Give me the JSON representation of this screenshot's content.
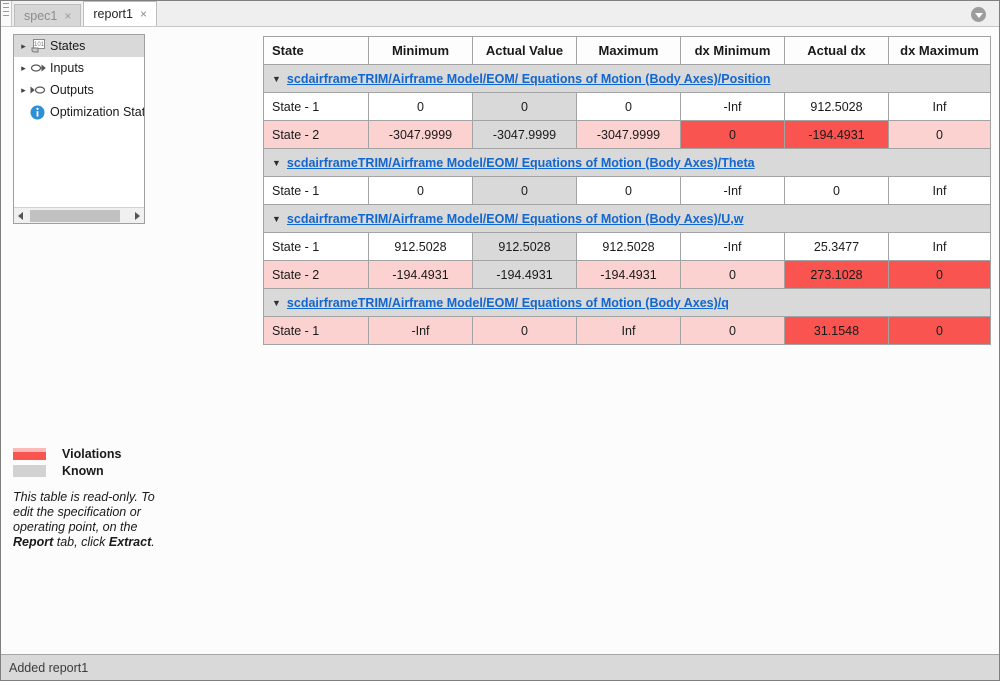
{
  "tabs": [
    {
      "label": "spec1",
      "active": false
    },
    {
      "label": "report1",
      "active": true
    }
  ],
  "close_glyph": "×",
  "tree": {
    "items": [
      {
        "label": "States",
        "icon": "states-icon",
        "caret": "▸",
        "selected": true
      },
      {
        "label": "Inputs",
        "icon": "inputs-icon",
        "caret": "▸",
        "selected": false
      },
      {
        "label": "Outputs",
        "icon": "outputs-icon",
        "caret": "▸",
        "selected": false
      },
      {
        "label": "Optimization Stat",
        "icon": "info-icon",
        "caret": "",
        "selected": false
      }
    ]
  },
  "table": {
    "columns": [
      "State",
      "Minimum",
      "Actual Value",
      "Maximum",
      "dx Minimum",
      "Actual dx",
      "dx Maximum"
    ],
    "groups": [
      {
        "title": "scdairframeTRIM/Airframe Model/EOM/ Equations of Motion (Body Axes)/Position",
        "rows": [
          {
            "state": "State - 1",
            "values": [
              "0",
              "0",
              "0",
              "-Inf",
              "912.5028",
              "Inf"
            ],
            "styles": [
              "normal",
              "normal",
              "actual",
              "normal",
              "normal",
              "normal",
              "normal"
            ]
          },
          {
            "state": "State - 2",
            "values": [
              "-3047.9999",
              "-3047.9999",
              "-3047.9999",
              "0",
              "-194.4931",
              "0"
            ],
            "styles": [
              "pink",
              "pink",
              "actual",
              "pink",
              "red",
              "red",
              "pink"
            ]
          }
        ]
      },
      {
        "title": "scdairframeTRIM/Airframe Model/EOM/ Equations of Motion (Body Axes)/Theta",
        "rows": [
          {
            "state": "State - 1",
            "values": [
              "0",
              "0",
              "0",
              "-Inf",
              "0",
              "Inf"
            ],
            "styles": [
              "normal",
              "normal",
              "actual",
              "normal",
              "normal",
              "normal",
              "normal"
            ]
          }
        ]
      },
      {
        "title": "scdairframeTRIM/Airframe Model/EOM/ Equations of Motion (Body Axes)/U,w",
        "rows": [
          {
            "state": "State - 1",
            "values": [
              "912.5028",
              "912.5028",
              "912.5028",
              "-Inf",
              "25.3477",
              "Inf"
            ],
            "styles": [
              "normal",
              "normal",
              "actual",
              "normal",
              "normal",
              "normal",
              "normal"
            ]
          },
          {
            "state": "State - 2",
            "values": [
              "-194.4931",
              "-194.4931",
              "-194.4931",
              "0",
              "273.1028",
              "0"
            ],
            "styles": [
              "pink",
              "pink",
              "actual",
              "pink",
              "pink",
              "red",
              "red"
            ]
          }
        ]
      },
      {
        "title": "scdairframeTRIM/Airframe Model/EOM/ Equations of Motion (Body Axes)/q",
        "rows": [
          {
            "state": "State - 1",
            "values": [
              "-Inf",
              "0",
              "Inf",
              "0",
              "31.1548",
              "0"
            ],
            "styles": [
              "pink",
              "pink",
              "pink",
              "pink",
              "pink",
              "red",
              "red"
            ]
          }
        ]
      }
    ],
    "caret_glyph": "▼"
  },
  "legend": {
    "violations_label": "Violations",
    "known_label": "Known",
    "note_p1": "This table is read-only. To edit the specification or operating point, on the ",
    "note_report": "Report",
    "note_p2": " tab, click ",
    "note_extract": "Extract",
    "note_p3": "."
  },
  "status_bar": "Added report1",
  "colors": {
    "violation_red": "#f95450",
    "violation_pink": "#fcd2d1",
    "known_gray": "#d9d9d9",
    "link_blue": "#1266cf"
  }
}
